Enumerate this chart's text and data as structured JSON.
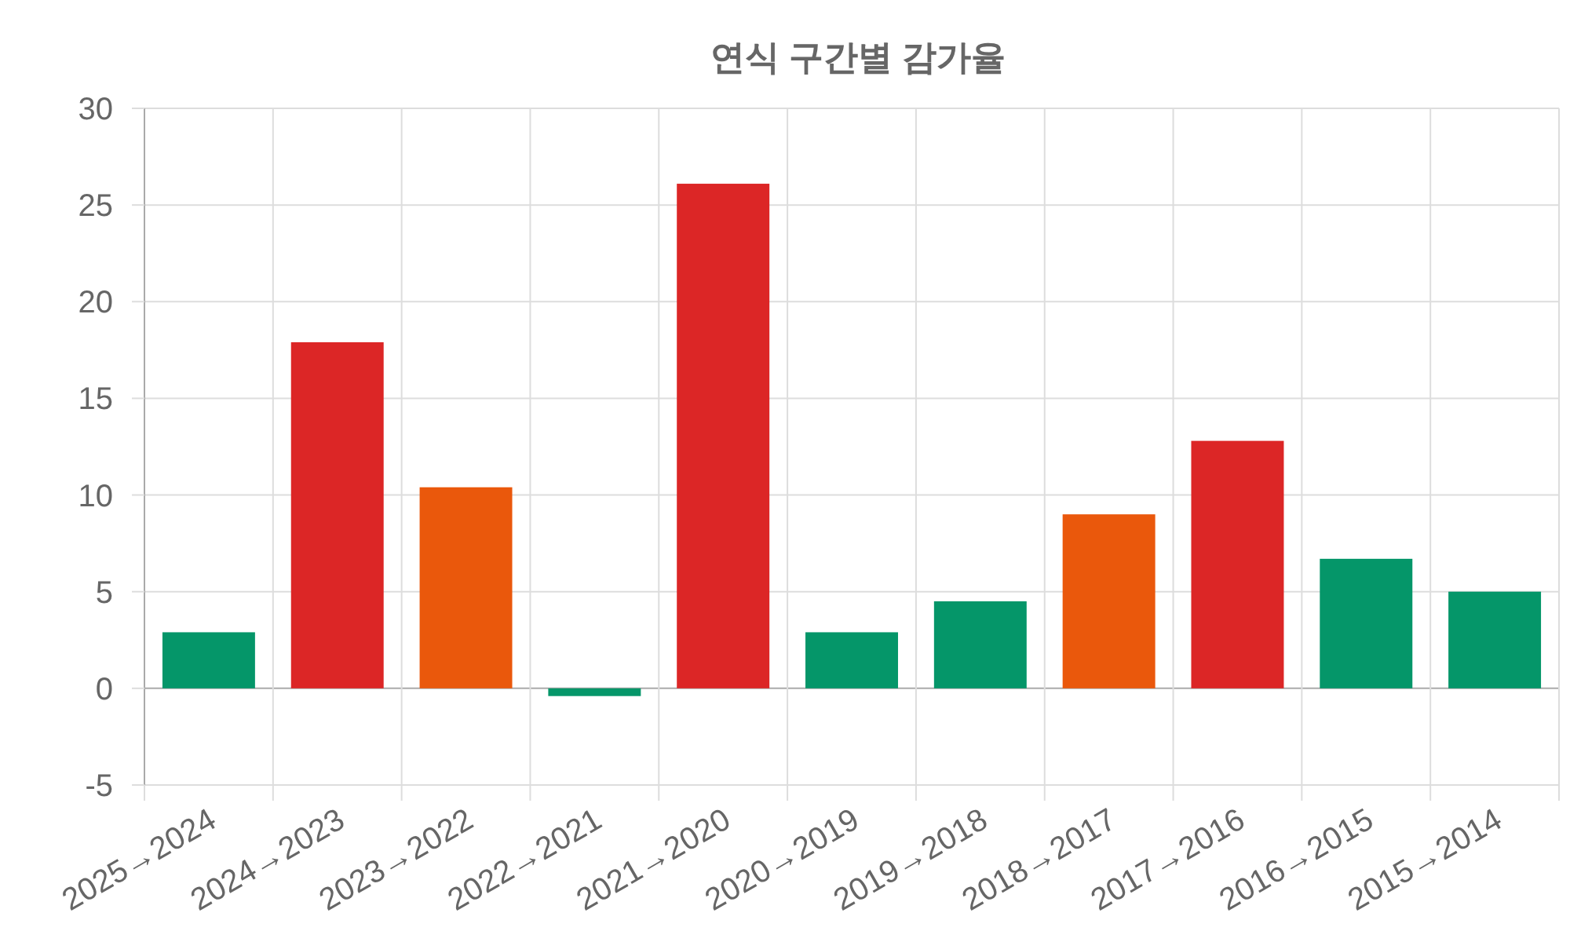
{
  "chart_data": {
    "type": "bar",
    "title": "연식 구간별 감가율",
    "categories": [
      "2025→2024",
      "2024→2023",
      "2023→2022",
      "2022→2021",
      "2021→2020",
      "2020→2019",
      "2019→2018",
      "2018→2017",
      "2017→2016",
      "2016→2015",
      "2015→2014"
    ],
    "values": [
      2.9,
      17.9,
      10.4,
      -0.4,
      26.1,
      2.9,
      4.5,
      9.0,
      12.8,
      6.7,
      5.0
    ],
    "colors": [
      "#059669",
      "#dc2626",
      "#ea580c",
      "#059669",
      "#dc2626",
      "#059669",
      "#059669",
      "#ea580c",
      "#dc2626",
      "#059669",
      "#059669"
    ],
    "ylim": [
      -5,
      30
    ],
    "yticks": [
      -5,
      0,
      5,
      10,
      15,
      20,
      25,
      30
    ],
    "grid": true
  }
}
